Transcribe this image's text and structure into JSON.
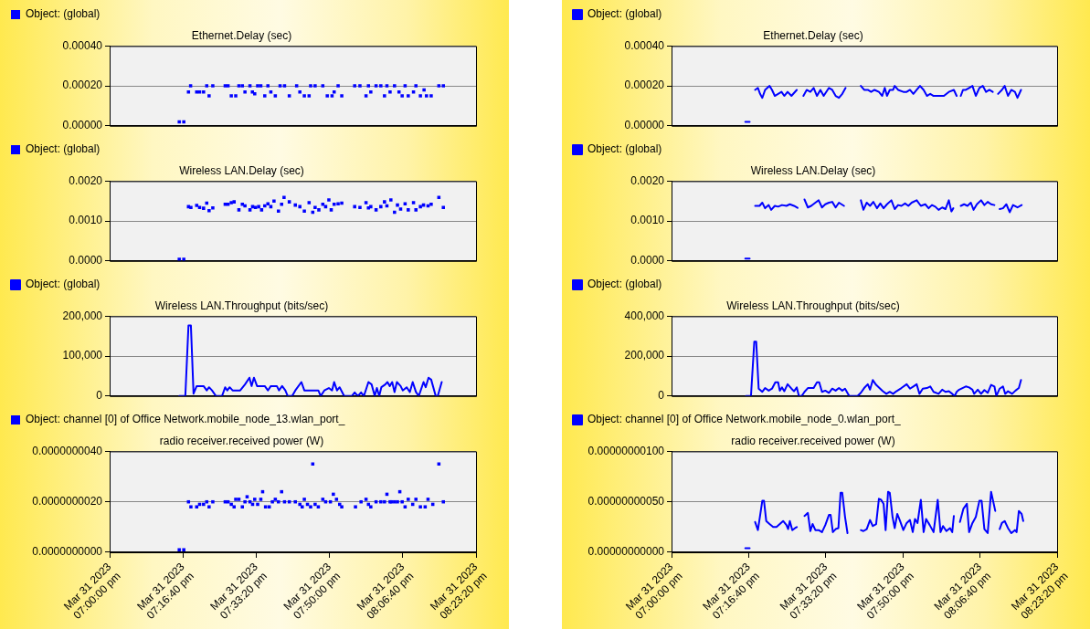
{
  "chart_data": [
    {
      "type": "scatter",
      "title": "Ethernet.Delay (sec)",
      "legend": "top left",
      "grid": "y",
      "tick_labels": "y",
      "marker": "square",
      "xlim": [
        "2023-03-31T19:00:00",
        "2023-03-31T20:23:20"
      ],
      "ylim": [
        0,
        0.0004
      ],
      "yticks": [
        {
          "value": 0,
          "label": "0.00000"
        },
        {
          "value": 0.0002,
          "label": "0.00020"
        },
        {
          "value": 0.0004,
          "label": "0.00040"
        }
      ],
      "x": [
        "2023-03-31T19:15:50",
        "2023-03-31T19:16:52",
        "2023-03-31T19:17:56",
        "2023-03-31T19:18:25",
        "2023-03-31T19:19:48",
        "2023-03-31T19:20:28",
        "2023-03-31T19:21:22",
        "2023-03-31T19:22:05",
        "2023-03-31T19:22:37",
        "2023-03-31T19:23:28",
        "2023-03-31T19:26:17",
        "2023-03-31T19:26:56",
        "2023-03-31T19:27:40",
        "2023-03-31T19:28:41",
        "2023-03-31T19:29:24",
        "2023-03-31T19:30:11",
        "2023-03-31T19:30:47",
        "2023-03-31T19:31:55",
        "2023-03-31T19:32:28",
        "2023-03-31T19:33:00",
        "2023-03-31T19:33:40",
        "2023-03-31T19:34:23",
        "2023-03-31T19:35:17",
        "2023-03-31T19:36:00",
        "2023-03-31T19:36:40",
        "2023-03-31T19:37:41",
        "2023-03-31T19:38:46",
        "2023-03-31T19:39:47",
        "2023-03-31T19:40:52",
        "2023-03-31T19:42:32",
        "2023-03-31T19:43:16",
        "2023-03-31T19:44:17",
        "2023-03-31T19:45:22",
        "2023-03-31T19:45:43",
        "2023-03-31T19:46:44",
        "2023-03-31T19:48:29",
        "2023-03-31T19:49:30",
        "2023-03-31T19:50:35",
        "2023-03-31T19:51:04",
        "2023-03-31T19:51:58",
        "2023-03-31T19:52:48",
        "2023-03-31T19:55:44",
        "2023-03-31T19:56:56",
        "2023-03-31T19:58:19",
        "2023-03-31T19:58:52",
        "2023-03-31T19:59:24",
        "2023-03-31T20:00:36",
        "2023-03-31T20:01:41",
        "2023-03-31T20:02:31",
        "2023-03-31T20:03:04",
        "2023-03-31T20:03:47",
        "2023-03-31T20:04:48",
        "2023-03-31T20:05:49",
        "2023-03-31T20:06:32",
        "2023-03-31T20:07:12",
        "2023-03-31T20:07:55",
        "2023-03-31T20:09:07",
        "2023-03-31T20:09:40",
        "2023-03-31T20:10:41",
        "2023-03-31T20:11:31",
        "2023-03-31T20:12:04",
        "2023-03-31T20:13:08",
        "2023-03-31T20:14:53",
        "2023-03-31T20:15:54"
      ],
      "series": [
        {
          "name": "Object: (global)",
          "color": "#0000ff",
          "values": [
            2e-05,
            2e-05,
            0.00017,
            0.0002,
            0.00017,
            0.00017,
            0.00017,
            0.0002,
            0.00015,
            0.0002,
            0.0002,
            0.0002,
            0.00015,
            0.00015,
            0.0002,
            0.0002,
            0.00017,
            0.0002,
            0.00017,
            0.00016,
            0.0002,
            0.0002,
            0.00015,
            0.0002,
            0.00017,
            0.00015,
            0.0002,
            0.0002,
            0.00015,
            0.0002,
            0.00017,
            0.00015,
            0.00015,
            0.0002,
            0.0002,
            0.0002,
            0.00015,
            0.00015,
            0.00017,
            0.0002,
            0.00015,
            0.0002,
            0.0002,
            0.00015,
            0.0002,
            0.00017,
            0.0002,
            0.0002,
            0.00015,
            0.0002,
            0.00017,
            0.0002,
            0.00017,
            0.00015,
            0.0002,
            0.00015,
            0.00017,
            0.0002,
            0.00015,
            0.00018,
            0.00015,
            0.00015,
            0.0002,
            0.0002
          ]
        }
      ]
    },
    {
      "type": "scatter",
      "title": "Wireless LAN.Delay (sec)",
      "legend": "top left",
      "grid": "y",
      "tick_labels": "y",
      "marker": "square",
      "xlim": [
        "2023-03-31T19:00:00",
        "2023-03-31T20:23:20"
      ],
      "ylim": [
        0,
        0.002
      ],
      "yticks": [
        {
          "value": 0,
          "label": "0.0000"
        },
        {
          "value": 0.001,
          "label": "0.0010"
        },
        {
          "value": 0.002,
          "label": "0.0020"
        }
      ],
      "x": [
        "2023-03-31T19:15:50",
        "2023-03-31T19:16:52",
        "2023-03-31T19:17:56",
        "2023-03-31T19:18:29",
        "2023-03-31T19:19:48",
        "2023-03-31T19:20:28",
        "2023-03-31T19:21:22",
        "2023-03-31T19:22:05",
        "2023-03-31T19:22:37",
        "2023-03-31T19:23:28",
        "2023-03-31T19:26:17",
        "2023-03-31T19:26:56",
        "2023-03-31T19:27:40",
        "2023-03-31T19:28:19",
        "2023-03-31T19:29:24",
        "2023-03-31T19:30:11",
        "2023-03-31T19:30:47",
        "2023-03-31T19:31:55",
        "2023-03-31T19:32:31",
        "2023-03-31T19:33:11",
        "2023-03-31T19:33:54",
        "2023-03-31T19:34:34",
        "2023-03-31T19:35:17",
        "2023-03-31T19:36:00",
        "2023-03-31T19:36:40",
        "2023-03-31T19:37:23",
        "2023-03-31T19:38:24",
        "2023-03-31T19:39:07",
        "2023-03-31T19:39:40",
        "2023-03-31T19:40:52",
        "2023-03-31T19:42:14",
        "2023-03-31T19:43:16",
        "2023-03-31T19:44:17",
        "2023-03-31T19:45:22",
        "2023-03-31T19:46:12",
        "2023-03-31T19:46:44",
        "2023-03-31T19:47:35",
        "2023-03-31T19:48:29",
        "2023-03-31T19:49:08",
        "2023-03-31T19:49:52",
        "2023-03-31T19:50:24",
        "2023-03-31T19:51:04",
        "2023-03-31T19:51:58",
        "2023-03-31T19:52:48",
        "2023-03-31T19:55:44",
        "2023-03-31T19:56:56",
        "2023-03-31T19:58:19",
        "2023-03-31T19:58:52",
        "2023-03-31T19:59:24",
        "2023-03-31T20:00:36",
        "2023-03-31T20:01:41",
        "2023-03-31T20:02:31",
        "2023-03-31T20:03:04",
        "2023-03-31T20:03:58",
        "2023-03-31T20:04:48",
        "2023-03-31T20:05:28",
        "2023-03-31T20:06:11",
        "2023-03-31T20:07:12",
        "2023-03-31T20:07:55",
        "2023-03-31T20:09:07",
        "2023-03-31T20:09:40",
        "2023-03-31T20:10:41",
        "2023-03-31T20:11:24",
        "2023-03-31T20:12:25",
        "2023-03-31T20:13:08",
        "2023-03-31T20:14:53",
        "2023-03-31T20:15:54"
      ],
      "series": [
        {
          "name": "Object: (global)",
          "color": "#0000ff",
          "values": [
            4e-05,
            4e-05,
            0.00136,
            0.00134,
            0.00139,
            0.00134,
            0.00132,
            0.00145,
            0.00126,
            0.00133,
            0.00142,
            0.00142,
            0.00146,
            0.00148,
            0.00128,
            0.00142,
            0.00138,
            0.00128,
            0.00136,
            0.00134,
            0.00136,
            0.00128,
            0.00138,
            0.00143,
            0.00136,
            0.0015,
            0.00125,
            0.00142,
            0.00159,
            0.00148,
            0.0014,
            0.00136,
            0.00125,
            0.00146,
            0.00122,
            0.00134,
            0.00128,
            0.00142,
            0.00136,
            0.00153,
            0.00128,
            0.00142,
            0.00143,
            0.00145,
            0.00136,
            0.00134,
            0.00146,
            0.00133,
            0.00136,
            0.00128,
            0.00136,
            0.00148,
            0.00138,
            0.00153,
            0.00122,
            0.0014,
            0.0013,
            0.00143,
            0.00128,
            0.00146,
            0.00128,
            0.00136,
            0.0014,
            0.00138,
            0.00142,
            0.00159,
            0.00134
          ]
        }
      ]
    },
    {
      "type": "line",
      "title": "Wireless LAN.Throughput (bits/sec)",
      "legend": "top left",
      "grid": "y",
      "tick_labels": "y",
      "xlim": [
        "2023-03-31T19:00:00",
        "2023-03-31T20:23:20"
      ],
      "ylim": [
        0,
        200000
      ],
      "yticks": [
        {
          "value": 0,
          "label": "0"
        },
        {
          "value": 100000,
          "label": "100,000"
        },
        {
          "value": 200000,
          "label": "200,000"
        }
      ],
      "x": [
        "2023-03-31T19:15:50",
        "2023-03-31T19:17:13",
        "2023-03-31T19:17:56",
        "2023-03-31T19:18:29",
        "2023-03-31T19:19:05",
        "2023-03-31T19:19:48",
        "2023-03-31T19:21:22",
        "2023-03-31T19:22:05",
        "2023-03-31T19:22:37",
        "2023-03-31T19:23:17",
        "2023-03-31T19:24:11",
        "2023-03-31T19:25:34",
        "2023-03-31T19:26:17",
        "2023-03-31T19:26:46",
        "2023-03-31T19:27:18",
        "2023-03-31T19:27:58",
        "2023-03-31T19:29:42",
        "2023-03-31T19:30:47",
        "2023-03-31T19:31:48",
        "2023-03-31T19:32:17",
        "2023-03-31T19:32:49",
        "2023-03-31T19:33:32",
        "2023-03-31T19:35:17",
        "2023-03-31T19:36:00",
        "2023-03-31T19:36:40",
        "2023-03-31T19:38:02",
        "2023-03-31T19:38:31",
        "2023-03-31T19:39:14",
        "2023-03-31T19:39:58",
        "2023-03-31T19:40:30",
        "2023-03-31T19:41:31",
        "2023-03-31T19:42:14",
        "2023-03-31T19:43:37",
        "2023-03-31T19:44:17",
        "2023-03-31T19:47:28",
        "2023-03-31T19:48:00",
        "2023-03-31T19:48:50",
        "2023-03-31T19:49:52",
        "2023-03-31T19:50:35",
        "2023-03-31T19:51:04",
        "2023-03-31T19:51:43",
        "2023-03-31T19:52:19",
        "2023-03-31T19:53:20",
        "2023-03-31T19:55:05",
        "2023-03-31T19:55:44",
        "2023-03-31T19:56:28",
        "2023-03-31T19:57:11",
        "2023-03-31T19:57:50",
        "2023-03-31T19:58:52",
        "2023-03-31T19:59:35",
        "2023-03-31T20:00:18",
        "2023-03-31T20:00:47",
        "2023-03-31T20:01:19",
        "2023-03-31T20:01:48",
        "2023-03-31T20:02:42",
        "2023-03-31T20:03:11",
        "2023-03-31T20:03:43",
        "2023-03-31T20:04:16",
        "2023-03-31T20:04:48",
        "2023-03-31T20:05:20",
        "2023-03-31T20:06:11",
        "2023-03-31T20:06:40",
        "2023-03-31T20:07:34",
        "2023-03-31T20:08:17",
        "2023-03-31T20:08:56",
        "2023-03-31T20:09:40",
        "2023-03-31T20:10:19",
        "2023-03-31T20:11:24",
        "2023-03-31T20:11:53",
        "2023-03-31T20:12:32",
        "2023-03-31T20:13:08",
        "2023-03-31T20:14:10",
        "2023-03-31T20:14:38",
        "2023-03-31T20:15:32"
      ],
      "series": [
        {
          "name": "Object: (global)",
          "color": "#0000ff",
          "values": [
            0,
            0,
            177000,
            177000,
            6000,
            25000,
            25000,
            14000,
            22000,
            14000,
            0,
            0,
            22000,
            14000,
            22000,
            14000,
            14000,
            29000,
            46000,
            25000,
            46000,
            25000,
            25000,
            14000,
            25000,
            25000,
            14000,
            25000,
            14000,
            0,
            0,
            14000,
            35000,
            14000,
            14000,
            0,
            14000,
            20000,
            14000,
            35000,
            14000,
            22000,
            0,
            0,
            9000,
            0,
            9000,
            0,
            35000,
            29000,
            0,
            20000,
            0,
            22000,
            29000,
            35000,
            25000,
            35000,
            10000,
            35000,
            25000,
            14000,
            22000,
            10000,
            35000,
            10000,
            0,
            35000,
            22000,
            46000,
            41000,
            0,
            0,
            35000
          ]
        }
      ]
    },
    {
      "type": "scatter",
      "title": "radio receiver.received power (W)",
      "legend": "top left",
      "grid": "y",
      "marker": "square",
      "xlim": [
        "2023-03-31T19:00:00",
        "2023-03-31T20:23:20"
      ],
      "xticks": [
        {
          "value": "2023-03-31T19:00:00",
          "label": "Mar 31 2023\n07:00:00 pm"
        },
        {
          "value": "2023-03-31T19:16:40",
          "label": "Mar 31 2023\n07:16:40 pm"
        },
        {
          "value": "2023-03-31T19:33:20",
          "label": "Mar 31 2023\n07:33:20 pm"
        },
        {
          "value": "2023-03-31T19:50:00",
          "label": "Mar 31 2023\n07:50:00 pm"
        },
        {
          "value": "2023-03-31T20:06:40",
          "label": "Mar 31 2023\n08:06:40 pm"
        },
        {
          "value": "2023-03-31T20:23:20",
          "label": "Mar 31 2023\n08:23:20 pm"
        }
      ],
      "ylim": [
        0,
        4e-09
      ],
      "yticks": [
        {
          "value": 0,
          "label": "0.0000000000"
        },
        {
          "value": 2e-09,
          "label": "0.0000000020"
        },
        {
          "value": 4e-09,
          "label": "0.0000000040"
        }
      ],
      "x": [
        "2023-03-31T19:15:50",
        "2023-03-31T19:16:52",
        "2023-03-31T19:17:56",
        "2023-03-31T19:18:29",
        "2023-03-31T19:19:48",
        "2023-03-31T19:20:28",
        "2023-03-31T19:21:22",
        "2023-03-31T19:22:05",
        "2023-03-31T19:22:37",
        "2023-03-31T19:23:28",
        "2023-03-31T19:26:17",
        "2023-03-31T19:26:56",
        "2023-03-31T19:27:40",
        "2023-03-31T19:28:19",
        "2023-03-31T19:28:41",
        "2023-03-31T19:29:24",
        "2023-03-31T19:30:11",
        "2023-03-31T19:30:47",
        "2023-03-31T19:31:16",
        "2023-03-31T19:31:55",
        "2023-03-31T19:32:31",
        "2023-03-31T19:33:00",
        "2023-03-31T19:33:40",
        "2023-03-31T19:34:23",
        "2023-03-31T19:34:48",
        "2023-03-31T19:35:28",
        "2023-03-31T19:36:18",
        "2023-03-31T19:37:01",
        "2023-03-31T19:37:41",
        "2023-03-31T19:38:24",
        "2023-03-31T19:39:07",
        "2023-03-31T19:39:47",
        "2023-03-31T19:40:52",
        "2023-03-31T19:42:14",
        "2023-03-31T19:43:16",
        "2023-03-31T19:43:48",
        "2023-03-31T19:44:17",
        "2023-03-31T19:45:00",
        "2023-03-31T19:45:43",
        "2023-03-31T19:46:12",
        "2023-03-31T19:46:44",
        "2023-03-31T19:47:28",
        "2023-03-31T19:48:29",
        "2023-03-31T19:49:08",
        "2023-03-31T19:50:13",
        "2023-03-31T19:50:53",
        "2023-03-31T19:51:36",
        "2023-03-31T19:52:19",
        "2023-03-31T19:52:48",
        "2023-03-31T19:55:55",
        "2023-03-31T19:57:11",
        "2023-03-31T19:58:19",
        "2023-03-31T19:58:52",
        "2023-03-31T19:59:24",
        "2023-03-31T20:00:36",
        "2023-03-31T20:01:41",
        "2023-03-31T20:02:31",
        "2023-03-31T20:03:04",
        "2023-03-31T20:03:47",
        "2023-03-31T20:04:05",
        "2023-03-31T20:04:48",
        "2023-03-31T20:05:28",
        "2023-03-31T20:06:00",
        "2023-03-31T20:06:32",
        "2023-03-31T20:07:12",
        "2023-03-31T20:07:55",
        "2023-03-31T20:08:56",
        "2023-03-31T20:09:40",
        "2023-03-31T20:10:41",
        "2023-03-31T20:11:46",
        "2023-03-31T20:12:25",
        "2023-03-31T20:13:30",
        "2023-03-31T20:14:53",
        "2023-03-31T20:15:54"
      ],
      "series": [
        {
          "name": "Object: channel [0] of Office Network.mobile_node_13.wlan_port_",
          "color": "#0000ff",
          "values": [
            1e-10,
            1e-10,
            2e-09,
            1.8e-09,
            1.8e-09,
            1.9e-09,
            1.9e-09,
            2e-09,
            1.8e-09,
            2e-09,
            2e-09,
            2e-09,
            1.9e-09,
            1.8e-09,
            2.1e-09,
            2.1e-09,
            1.8e-09,
            2e-09,
            2.2e-09,
            2e-09,
            1.9e-09,
            2.1e-09,
            1.9e-09,
            2.1e-09,
            2.4e-09,
            1.8e-09,
            1.8e-09,
            2e-09,
            2.1e-09,
            2e-09,
            2.4e-09,
            2e-09,
            2e-09,
            2e-09,
            1.9e-09,
            1.8e-09,
            2.1e-09,
            1.9e-09,
            1.8e-09,
            3.5e-09,
            1.9e-09,
            1.8e-09,
            2.1e-09,
            2e-09,
            2e-09,
            2.3e-09,
            2.1e-09,
            1.9e-09,
            1.8e-09,
            1.8e-09,
            2e-09,
            2.1e-09,
            1.9e-09,
            1.8e-09,
            2e-09,
            2e-09,
            2e-09,
            2.3e-09,
            2e-09,
            2e-09,
            2e-09,
            2e-09,
            2.4e-09,
            2e-09,
            1.8e-09,
            2.1e-09,
            1.9e-09,
            2.1e-09,
            1.8e-09,
            1.8e-09,
            2.1e-09,
            1.9e-09,
            3.5e-09,
            2e-09
          ]
        }
      ]
    },
    {
      "type": "line",
      "title": "Ethernet.Delay (sec)",
      "legend": "top left",
      "grid": "y",
      "tick_labels": "y",
      "xlim": [
        "2023-03-31T19:00:00",
        "2023-03-31T20:23:20"
      ],
      "ylim": [
        0,
        0.0004
      ],
      "yticks": [
        {
          "value": 0,
          "label": "0.00000"
        },
        {
          "value": 0.0002,
          "label": "0.00020"
        },
        {
          "value": 0.0004,
          "label": "0.00040"
        }
      ],
      "x": [
        "2023-03-31T19:15:56",
        "2023-03-31T19:16:53",
        "2023-03-31T19:17:24",
        "2023-03-31T19:18:04",
        "2023-03-31T19:18:40",
        "2023-03-31T19:19:08",
        "2023-03-31T19:19:37",
        "2023-03-31T19:20:13",
        "2023-03-31T19:21:11",
        "2023-03-31T19:21:43",
        "2023-03-31T19:22:19",
        "2023-03-31T19:23:02",
        "2023-03-31T19:23:46",
        "2023-03-31T19:24:22",
        "2023-03-31T19:25:05",
        "2023-03-31T19:25:55",
        "2023-03-31T19:27:04",
        "2023-03-31T19:27:47",
        "2023-03-31T19:28:30",
        "2023-03-31T19:29:13",
        "2023-03-31T19:30:00",
        "2023-03-31T19:30:43",
        "2023-03-31T19:31:26",
        "2023-03-31T19:32:10",
        "2023-03-31T19:32:53",
        "2023-03-31T19:34:01",
        "2023-03-31T19:34:44",
        "2023-03-31T19:35:28",
        "2023-03-31T19:36:11",
        "2023-03-31T19:36:54",
        "2023-03-31T19:37:37",
        "2023-03-31T19:39:00",
        "2023-03-31T19:40:55",
        "2023-03-31T19:41:38",
        "2023-03-31T19:42:25",
        "2023-03-31T19:43:08",
        "2023-03-31T19:43:52",
        "2023-03-31T19:44:49",
        "2023-03-31T19:45:32",
        "2023-03-31T19:46:05",
        "2023-03-31T19:46:34",
        "2023-03-31T19:47:10",
        "2023-03-31T19:47:53",
        "2023-03-31T19:48:14",
        "2023-03-31T19:48:58",
        "2023-03-31T19:50:06",
        "2023-03-31T19:50:49",
        "2023-03-31T19:51:32",
        "2023-03-31T19:52:16",
        "2023-03-31T19:52:59",
        "2023-03-31T19:53:42",
        "2023-03-31T19:54:29",
        "2023-03-31T19:55:12",
        "2023-03-31T19:55:55",
        "2023-03-31T19:56:38",
        "2023-03-31T19:57:43",
        "2023-03-31T19:58:52",
        "2023-03-31T19:59:56",
        "2023-03-31T20:01:01",
        "2023-03-31T20:01:37",
        "2023-03-31T20:02:06",
        "2023-03-31T20:02:31",
        "2023-03-31T20:03:00",
        "2023-03-31T20:03:36",
        "2023-03-31T20:04:19",
        "2023-03-31T20:05:02",
        "2023-03-31T20:05:46",
        "2023-03-31T20:06:32",
        "2023-03-31T20:07:16",
        "2023-03-31T20:07:59",
        "2023-03-31T20:08:42",
        "2023-03-31T20:09:25",
        "2023-03-31T20:10:01",
        "2023-03-31T20:10:34",
        "2023-03-31T20:11:24",
        "2023-03-31T20:12:00",
        "2023-03-31T20:12:43",
        "2023-03-31T20:13:26",
        "2023-03-31T20:14:13",
        "2023-03-31T20:14:46",
        "2023-03-31T20:15:32"
      ],
      "series": [
        {
          "name": "Object: (global)",
          "color": "#0000ff",
          "values": [
            2e-05,
            2e-05,
            null,
            0.00018,
            0.00019,
            0.00016,
            0.00014,
            0.00018,
            0.0002,
            0.00018,
            0.00015,
            0.00016,
            0.00017,
            0.00015,
            0.00017,
            0.00015,
            0.00018,
            null,
            0.00015,
            0.00018,
            0.00017,
            0.00019,
            0.00015,
            0.00018,
            0.00015,
            0.00019,
            0.00018,
            0.00015,
            0.00014,
            0.00016,
            0.00019,
            null,
            0.0002,
            0.00018,
            0.00018,
            0.00017,
            0.00018,
            0.00017,
            0.00015,
            0.00019,
            0.00015,
            0.00018,
            0.00018,
            0.0002,
            0.00018,
            0.00017,
            0.00017,
            0.00018,
            0.00016,
            0.00018,
            0.0002,
            0.00018,
            0.00015,
            0.00016,
            0.00015,
            0.00015,
            0.00015,
            0.00017,
            0.00018,
            0.00015,
            null,
            0.00015,
            0.00018,
            0.00018,
            0.00019,
            0.0002,
            0.00015,
            0.00019,
            0.0002,
            0.00017,
            0.00018,
            0.00017,
            null,
            0.00016,
            0.00018,
            0.0002,
            0.00015,
            0.00018,
            0.00017,
            0.00014,
            0.00018
          ]
        }
      ]
    },
    {
      "type": "line",
      "title": "Wireless LAN.Delay (sec)",
      "legend": "top left",
      "grid": "y",
      "tick_labels": "y",
      "xlim": [
        "2023-03-31T19:00:00",
        "2023-03-31T20:23:20"
      ],
      "ylim": [
        0,
        0.002
      ],
      "yticks": [
        {
          "value": 0,
          "label": "0.0000"
        },
        {
          "value": 0.001,
          "label": "0.0010"
        },
        {
          "value": 0.002,
          "label": "0.0020"
        }
      ],
      "x": [
        "2023-03-31T19:15:56",
        "2023-03-31T19:16:53",
        "2023-03-31T19:17:24",
        "2023-03-31T19:18:04",
        "2023-03-31T19:19:01",
        "2023-03-31T19:19:37",
        "2023-03-31T19:20:13",
        "2023-03-31T19:21:00",
        "2023-03-31T19:21:32",
        "2023-03-31T19:22:19",
        "2023-03-31T19:23:02",
        "2023-03-31T19:23:53",
        "2023-03-31T19:24:50",
        "2023-03-31T19:25:34",
        "2023-03-31T19:26:28",
        "2023-03-31T19:27:14",
        "2023-03-31T19:27:58",
        "2023-03-31T19:28:44",
        "2023-03-31T19:29:28",
        "2023-03-31T19:30:11",
        "2023-03-31T19:31:05",
        "2023-03-31T19:31:48",
        "2023-03-31T19:32:31",
        "2023-03-31T19:33:14",
        "2023-03-31T19:34:01",
        "2023-03-31T19:34:44",
        "2023-03-31T19:35:28",
        "2023-03-31T19:36:11",
        "2023-03-31T19:37:16",
        "2023-03-31T19:39:00",
        "2023-03-31T19:40:55",
        "2023-03-31T19:41:28",
        "2023-03-31T19:42:11",
        "2023-03-31T19:42:54",
        "2023-03-31T19:43:37",
        "2023-03-31T19:44:24",
        "2023-03-31T19:45:07",
        "2023-03-31T19:45:50",
        "2023-03-31T19:46:34",
        "2023-03-31T19:47:31",
        "2023-03-31T19:48:14",
        "2023-03-31T19:48:58",
        "2023-03-31T19:49:41",
        "2023-03-31T19:50:28",
        "2023-03-31T19:51:11",
        "2023-03-31T19:51:54",
        "2023-03-31T19:52:59",
        "2023-03-31T19:53:53",
        "2023-03-31T19:54:50",
        "2023-03-31T19:55:34",
        "2023-03-31T19:56:17",
        "2023-03-31T19:57:00",
        "2023-03-31T19:57:43",
        "2023-03-31T19:58:30",
        "2023-03-31T19:59:13",
        "2023-03-31T19:59:56",
        "2023-03-31T20:00:29",
        "2023-03-31T20:00:54",
        "2023-03-31T20:01:48",
        "2023-03-31T20:02:31",
        "2023-03-31T20:03:14",
        "2023-03-31T20:03:58",
        "2023-03-31T20:04:41",
        "2023-03-31T20:05:17",
        "2023-03-31T20:06:00",
        "2023-03-31T20:06:54",
        "2023-03-31T20:07:37",
        "2023-03-31T20:08:20",
        "2023-03-31T20:09:04",
        "2023-03-31T20:09:47",
        "2023-03-31T20:10:19",
        "2023-03-31T20:10:55",
        "2023-03-31T20:11:38",
        "2023-03-31T20:12:22",
        "2023-03-31T20:13:05",
        "2023-03-31T20:13:48",
        "2023-03-31T20:14:46",
        "2023-03-31T20:15:40"
      ],
      "series": [
        {
          "name": "Object: (global)",
          "color": "#0000ff",
          "values": [
            6e-05,
            6e-05,
            null,
            0.00138,
            0.00138,
            0.00146,
            0.00132,
            0.0014,
            0.00128,
            0.00138,
            0.00136,
            0.0014,
            0.00138,
            0.00142,
            0.00138,
            0.00133,
            null,
            0.00154,
            0.00134,
            0.00138,
            0.00146,
            0.00152,
            0.00134,
            0.00142,
            0.00146,
            0.00148,
            0.00134,
            0.00146,
            0.00138,
            null,
            0.00152,
            0.00128,
            0.00146,
            0.00138,
            0.00148,
            0.00132,
            0.00144,
            0.00132,
            0.00142,
            0.00152,
            0.0013,
            0.0014,
            0.00138,
            0.00144,
            0.00138,
            0.00146,
            0.00152,
            0.00138,
            0.00142,
            0.00132,
            0.0014,
            0.00136,
            0.00128,
            0.00134,
            0.0013,
            0.00152,
            0.00124,
            0.00132,
            null,
            0.00138,
            0.00142,
            0.00138,
            0.00146,
            0.00128,
            0.00142,
            0.00152,
            0.0014,
            0.00148,
            0.00142,
            0.0014,
            null,
            0.0013,
            0.00132,
            0.00142,
            0.00122,
            0.0014,
            0.00134,
            0.0014
          ]
        }
      ]
    },
    {
      "type": "line",
      "title": "Wireless LAN.Throughput (bits/sec)",
      "legend": "top left",
      "grid": "y",
      "tick_labels": "y",
      "xlim": [
        "2023-03-31T19:00:00",
        "2023-03-31T20:23:20"
      ],
      "ylim": [
        0,
        400000
      ],
      "yticks": [
        {
          "value": 0,
          "label": "0"
        },
        {
          "value": 200000,
          "label": "200,000"
        },
        {
          "value": 400000,
          "label": "400,000"
        }
      ],
      "x": [
        "2023-03-31T19:16:05",
        "2023-03-31T19:17:10",
        "2023-03-31T19:17:53",
        "2023-03-31T19:18:18",
        "2023-03-31T19:18:50",
        "2023-03-31T19:19:37",
        "2023-03-31T19:20:13",
        "2023-03-31T19:21:00",
        "2023-03-31T19:21:43",
        "2023-03-31T19:22:26",
        "2023-03-31T19:23:02",
        "2023-03-31T19:23:24",
        "2023-03-31T19:23:53",
        "2023-03-31T19:24:22",
        "2023-03-31T19:25:05",
        "2023-03-31T19:25:55",
        "2023-03-31T19:26:28",
        "2023-03-31T19:27:04",
        "2023-03-31T19:27:32",
        "2023-03-31T19:28:08",
        "2023-03-31T19:28:44",
        "2023-03-31T19:29:28",
        "2023-03-31T19:30:43",
        "2023-03-31T19:31:26",
        "2023-03-31T19:31:55",
        "2023-03-31T19:32:31",
        "2023-03-31T19:33:14",
        "2023-03-31T19:34:01",
        "2023-03-31T19:34:44",
        "2023-03-31T19:35:28",
        "2023-03-31T19:36:11",
        "2023-03-31T19:36:54",
        "2023-03-31T19:37:30",
        "2023-03-31T19:38:24",
        "2023-03-31T19:40:12",
        "2023-03-31T19:40:55",
        "2023-03-31T19:41:38",
        "2023-03-31T19:42:25",
        "2023-03-31T19:42:54",
        "2023-03-31T19:43:30",
        "2023-03-31T19:44:13",
        "2023-03-31T19:44:56",
        "2023-03-31T19:45:40",
        "2023-03-31T19:46:26",
        "2023-03-31T19:47:10",
        "2023-03-31T19:47:53",
        "2023-03-31T19:48:36",
        "2023-03-31T19:49:41",
        "2023-03-31T19:50:49",
        "2023-03-31T19:51:32",
        "2023-03-31T19:52:16",
        "2023-03-31T19:52:59",
        "2023-03-31T19:53:35",
        "2023-03-31T19:54:18",
        "2023-03-31T19:55:12",
        "2023-03-31T19:55:55",
        "2023-03-31T19:56:38",
        "2023-03-31T19:57:43",
        "2023-03-31T19:58:30",
        "2023-03-31T19:59:13",
        "2023-03-31T19:59:56",
        "2023-03-31T20:00:40",
        "2023-03-31T20:01:12",
        "2023-03-31T20:01:37",
        "2023-03-31T20:02:10",
        "2023-03-31T20:02:53",
        "2023-03-31T20:03:36",
        "2023-03-31T20:04:19",
        "2023-03-31T20:05:02",
        "2023-03-31T20:05:24",
        "2023-03-31T20:06:11",
        "2023-03-31T20:06:54",
        "2023-03-31T20:07:37",
        "2023-03-31T20:08:20",
        "2023-03-31T20:09:04",
        "2023-03-31T20:09:47",
        "2023-03-31T20:10:12",
        "2023-03-31T20:10:55",
        "2023-03-31T20:11:38",
        "2023-03-31T20:12:07",
        "2023-03-31T20:12:43",
        "2023-03-31T20:13:37",
        "2023-03-31T20:14:20",
        "2023-03-31T20:15:04",
        "2023-03-31T20:15:32"
      ],
      "series": [
        {
          "name": "Object: (global)",
          "color": "#0000ff",
          "values": [
            0,
            0,
            272000,
            272000,
            37000,
            21000,
            40000,
            27000,
            37000,
            69000,
            69000,
            27000,
            43000,
            24000,
            59000,
            37000,
            24000,
            43000,
            0,
            0,
            21000,
            40000,
            40000,
            69000,
            69000,
            21000,
            27000,
            16000,
            37000,
            27000,
            40000,
            27000,
            37000,
            0,
            0,
            16000,
            40000,
            59000,
            32000,
            80000,
            56000,
            40000,
            24000,
            11000,
            21000,
            11000,
            24000,
            40000,
            59000,
            37000,
            48000,
            59000,
            11000,
            37000,
            40000,
            48000,
            21000,
            11000,
            32000,
            21000,
            24000,
            11000,
            0,
            21000,
            32000,
            40000,
            48000,
            43000,
            32000,
            11000,
            32000,
            11000,
            30000,
            16000,
            56000,
            48000,
            0,
            37000,
            48000,
            11000,
            24000,
            11000,
            27000,
            40000,
            80000
          ]
        }
      ]
    },
    {
      "type": "line",
      "title": "radio receiver.received power (W)",
      "legend": "top left",
      "grid": "y",
      "xlim": [
        "2023-03-31T19:00:00",
        "2023-03-31T20:23:20"
      ],
      "xticks": [
        {
          "value": "2023-03-31T19:00:00",
          "label": "Mar 31 2023\n07:00:00 pm"
        },
        {
          "value": "2023-03-31T19:16:40",
          "label": "Mar 31 2023\n07:16:40 pm"
        },
        {
          "value": "2023-03-31T19:33:20",
          "label": "Mar 31 2023\n07:33:20 pm"
        },
        {
          "value": "2023-03-31T19:50:00",
          "label": "Mar 31 2023\n07:50:00 pm"
        },
        {
          "value": "2023-03-31T20:06:40",
          "label": "Mar 31 2023\n08:06:40 pm"
        },
        {
          "value": "2023-03-31T20:23:20",
          "label": "Mar 31 2023\n08:23:20 pm"
        }
      ],
      "ylim": [
        0,
        1e-09
      ],
      "yticks": [
        {
          "value": 0,
          "label": "0.00000000000"
        },
        {
          "value": 5e-10,
          "label": "0.00000000050"
        },
        {
          "value": 1e-09,
          "label": "0.00000000100"
        }
      ],
      "x": [
        "2023-03-31T19:15:56",
        "2023-03-31T19:16:53",
        "2023-03-31T19:17:24",
        "2023-03-31T19:18:04",
        "2023-03-31T19:18:40",
        "2023-03-31T19:19:37",
        "2023-03-31T19:19:59",
        "2023-03-31T19:20:28",
        "2023-03-31T19:21:11",
        "2023-03-31T19:21:58",
        "2023-03-31T19:22:41",
        "2023-03-31T19:23:24",
        "2023-03-31T19:24:07",
        "2023-03-31T19:24:50",
        "2023-03-31T19:25:12",
        "2023-03-31T19:25:34",
        "2023-03-31T19:26:06",
        "2023-03-31T19:26:42",
        "2023-03-31T19:27:04",
        "2023-03-31T19:27:54",
        "2023-03-31T19:28:44",
        "2023-03-31T19:29:28",
        "2023-03-31T19:30:00",
        "2023-03-31T19:30:29",
        "2023-03-31T19:31:05",
        "2023-03-31T19:31:48",
        "2023-03-31T19:32:31",
        "2023-03-31T19:33:14",
        "2023-03-31T19:34:01",
        "2023-03-31T19:34:23",
        "2023-03-31T19:34:52",
        "2023-03-31T19:35:28",
        "2023-03-31T19:36:04",
        "2023-03-31T19:36:32",
        "2023-03-31T19:36:54",
        "2023-03-31T19:37:30",
        "2023-03-31T19:38:02",
        "2023-03-31T19:39:36",
        "2023-03-31T19:40:55",
        "2023-03-31T19:41:28",
        "2023-03-31T19:42:11",
        "2023-03-31T19:42:54",
        "2023-03-31T19:43:30",
        "2023-03-31T19:44:13",
        "2023-03-31T19:44:49",
        "2023-03-31T19:45:18",
        "2023-03-31T19:45:50",
        "2023-03-31T19:46:16",
        "2023-03-31T19:46:48",
        "2023-03-31T19:47:10",
        "2023-03-31T19:47:46",
        "2023-03-31T19:48:14",
        "2023-03-31T19:48:47",
        "2023-03-31T19:49:19",
        "2023-03-31T19:50:06",
        "2023-03-31T19:50:49",
        "2023-03-31T19:51:32",
        "2023-03-31T19:52:08",
        "2023-03-31T19:52:37",
        "2023-03-31T19:53:10",
        "2023-03-31T19:53:53",
        "2023-03-31T19:54:29",
        "2023-03-31T19:55:01",
        "2023-03-31T19:55:48",
        "2023-03-31T19:56:38",
        "2023-03-31T19:57:32",
        "2023-03-31T19:58:08",
        "2023-03-31T19:58:41",
        "2023-03-31T19:59:24",
        "2023-03-31T20:00:11",
        "2023-03-31T20:00:40",
        "2023-03-31T20:01:01",
        "2023-03-31T20:01:41",
        "2023-03-31T20:02:20",
        "2023-03-31T20:03:04",
        "2023-03-31T20:03:50",
        "2023-03-31T20:04:19",
        "2023-03-31T20:05:02",
        "2023-03-31T20:05:46",
        "2023-03-31T20:06:32",
        "2023-03-31T20:07:01",
        "2023-03-31T20:07:37",
        "2023-03-31T20:08:20",
        "2023-03-31T20:09:04",
        "2023-03-31T20:09:58",
        "2023-03-31T20:10:30",
        "2023-03-31T20:10:55",
        "2023-03-31T20:11:24",
        "2023-03-31T20:12:00",
        "2023-03-31T20:12:43",
        "2023-03-31T20:13:26",
        "2023-03-31T20:14:13",
        "2023-03-31T20:14:35",
        "2023-03-31T20:15:04",
        "2023-03-31T20:15:40",
        "2023-03-31T20:16:01"
      ],
      "series": [
        {
          "name": "Object: channel [0] of Office Network.mobile_node_0.wlan_port_",
          "color": "#0000ff",
          "values": [
            4e-11,
            4e-11,
            null,
            3e-10,
            2.2e-10,
            5.1e-10,
            5.1e-10,
            3.1e-10,
            2.8e-10,
            2.5e-10,
            2.5e-10,
            2.8e-10,
            3.1e-10,
            2.7e-10,
            2.3e-10,
            3.1e-10,
            2.2e-10,
            2.4e-10,
            2.5e-10,
            null,
            3.6e-10,
            3.9e-10,
            2.1e-10,
            2.8e-10,
            2.2e-10,
            2.2e-10,
            2e-10,
            2.7e-10,
            3.7e-10,
            3.7e-10,
            2e-10,
            2.3e-10,
            2.4e-10,
            5.9e-10,
            5.9e-10,
            3.5e-10,
            1.9e-10,
            null,
            2.2e-10,
            2.1e-10,
            2.3e-10,
            3.2e-10,
            2.6e-10,
            2.8e-10,
            5.3e-10,
            5.2e-10,
            4.8e-10,
            2.2e-10,
            6e-10,
            5.9e-10,
            3.5e-10,
            2.4e-10,
            3.8e-10,
            3.2e-10,
            2.2e-10,
            2.9e-10,
            3.2e-10,
            2e-10,
            3.3e-10,
            2.9e-10,
            5.2e-10,
            2e-10,
            3.3e-10,
            2.7e-10,
            2e-10,
            5.2e-10,
            2e-10,
            2.6e-10,
            2.1e-10,
            2.4e-10,
            2e-10,
            3.6e-10,
            null,
            3e-10,
            4.3e-10,
            4.8e-10,
            2e-10,
            2.9e-10,
            3.5e-10,
            5.1e-10,
            5.1e-10,
            2.3e-10,
            1.9e-10,
            6e-10,
            4.1e-10,
            null,
            2.3e-10,
            2.9e-10,
            3.1e-10,
            2.4e-10,
            1.9e-10,
            2.2e-10,
            2e-10,
            4.1e-10,
            3.8e-10,
            3.1e-10
          ]
        }
      ]
    }
  ]
}
